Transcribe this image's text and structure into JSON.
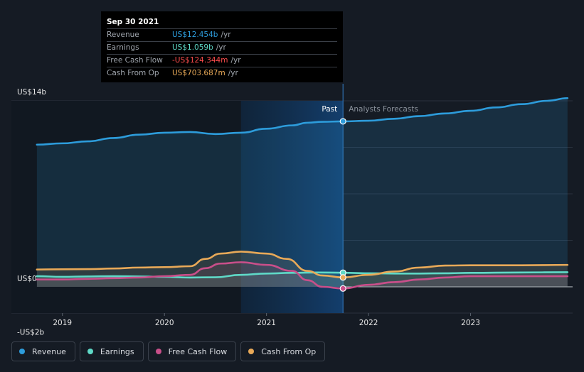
{
  "tooltip": {
    "date": "Sep 30 2021",
    "rows": [
      {
        "label": "Revenue",
        "value": "US$12.454b",
        "unit": "/yr",
        "color": "#2d9cdb"
      },
      {
        "label": "Earnings",
        "value": "US$1.059b",
        "unit": "/yr",
        "color": "#5fd9c7"
      },
      {
        "label": "Free Cash Flow",
        "value": "-US$124.344m",
        "unit": "/yr",
        "color": "#ff4d4d"
      },
      {
        "label": "Cash From Op",
        "value": "US$703.687m",
        "unit": "/yr",
        "color": "#e8a958"
      }
    ]
  },
  "chart_data": {
    "type": "area",
    "ylim": [
      -2,
      14
    ],
    "y_ticks": [
      {
        "value": 14,
        "label": "US$14b"
      },
      {
        "value": 0,
        "label": "US$0"
      },
      {
        "value": -2,
        "label": "-US$2b"
      }
    ],
    "x_ticks": [
      {
        "value": 2019,
        "label": "2019"
      },
      {
        "value": 2020,
        "label": "2020"
      },
      {
        "value": 2021,
        "label": "2021"
      },
      {
        "value": 2022,
        "label": "2022"
      },
      {
        "value": 2023,
        "label": "2023"
      }
    ],
    "xlim": [
      2018.5,
      2024.0
    ],
    "divider_x": 2021.75,
    "past_label": "Past",
    "forecast_label": "Analysts Forecasts",
    "highlight_range": [
      2020.75,
      2021.75
    ],
    "grid": true,
    "series": [
      {
        "name": "Revenue",
        "color": "#2d9cdb",
        "points": [
          [
            2018.75,
            10.7
          ],
          [
            2019.0,
            10.8
          ],
          [
            2019.25,
            10.95
          ],
          [
            2019.5,
            11.2
          ],
          [
            2019.75,
            11.45
          ],
          [
            2020.0,
            11.6
          ],
          [
            2020.25,
            11.65
          ],
          [
            2020.5,
            11.5
          ],
          [
            2020.75,
            11.6
          ],
          [
            2021.0,
            11.9
          ],
          [
            2021.25,
            12.15
          ],
          [
            2021.4,
            12.35
          ],
          [
            2021.55,
            12.42
          ],
          [
            2021.75,
            12.454
          ],
          [
            2022.0,
            12.5
          ],
          [
            2022.25,
            12.65
          ],
          [
            2022.5,
            12.85
          ],
          [
            2022.75,
            13.05
          ],
          [
            2023.0,
            13.25
          ],
          [
            2023.25,
            13.5
          ],
          [
            2023.5,
            13.75
          ],
          [
            2023.75,
            14.0
          ],
          [
            2023.95,
            14.2
          ]
        ]
      },
      {
        "name": "Earnings",
        "color": "#5fd9c7",
        "points": [
          [
            2018.75,
            0.8
          ],
          [
            2019.0,
            0.75
          ],
          [
            2019.25,
            0.78
          ],
          [
            2019.5,
            0.8
          ],
          [
            2019.75,
            0.78
          ],
          [
            2020.0,
            0.75
          ],
          [
            2020.25,
            0.7
          ],
          [
            2020.5,
            0.72
          ],
          [
            2020.75,
            0.9
          ],
          [
            2021.0,
            1.0
          ],
          [
            2021.25,
            1.05
          ],
          [
            2021.5,
            1.08
          ],
          [
            2021.75,
            1.059
          ],
          [
            2022.0,
            1.02
          ],
          [
            2022.25,
            1.0
          ],
          [
            2022.5,
            1.0
          ],
          [
            2022.75,
            1.02
          ],
          [
            2023.0,
            1.05
          ],
          [
            2023.5,
            1.08
          ],
          [
            2023.95,
            1.1
          ]
        ]
      },
      {
        "name": "Free Cash Flow",
        "color": "#c94f8a",
        "points": [
          [
            2018.75,
            0.55
          ],
          [
            2019.0,
            0.55
          ],
          [
            2019.25,
            0.6
          ],
          [
            2019.5,
            0.65
          ],
          [
            2019.75,
            0.7
          ],
          [
            2020.0,
            0.8
          ],
          [
            2020.25,
            0.9
          ],
          [
            2020.4,
            1.4
          ],
          [
            2020.55,
            1.75
          ],
          [
            2020.75,
            1.85
          ],
          [
            2021.0,
            1.65
          ],
          [
            2021.25,
            1.2
          ],
          [
            2021.4,
            0.5
          ],
          [
            2021.55,
            0.0
          ],
          [
            2021.75,
            -0.124
          ],
          [
            2022.0,
            0.15
          ],
          [
            2022.25,
            0.35
          ],
          [
            2022.5,
            0.55
          ],
          [
            2022.75,
            0.7
          ],
          [
            2023.0,
            0.8
          ],
          [
            2023.5,
            0.8
          ],
          [
            2023.95,
            0.8
          ]
        ]
      },
      {
        "name": "Cash From Op",
        "color": "#e8a958",
        "points": [
          [
            2018.75,
            1.3
          ],
          [
            2019.0,
            1.32
          ],
          [
            2019.25,
            1.33
          ],
          [
            2019.5,
            1.38
          ],
          [
            2019.75,
            1.45
          ],
          [
            2020.0,
            1.48
          ],
          [
            2020.25,
            1.55
          ],
          [
            2020.4,
            2.1
          ],
          [
            2020.55,
            2.5
          ],
          [
            2020.75,
            2.65
          ],
          [
            2021.0,
            2.5
          ],
          [
            2021.2,
            2.1
          ],
          [
            2021.4,
            1.2
          ],
          [
            2021.55,
            0.85
          ],
          [
            2021.75,
            0.704
          ],
          [
            2022.0,
            0.9
          ],
          [
            2022.25,
            1.15
          ],
          [
            2022.5,
            1.45
          ],
          [
            2022.75,
            1.6
          ],
          [
            2023.0,
            1.62
          ],
          [
            2023.5,
            1.62
          ],
          [
            2023.95,
            1.65
          ]
        ]
      }
    ]
  },
  "legend": [
    {
      "label": "Revenue",
      "color": "#2d9cdb"
    },
    {
      "label": "Earnings",
      "color": "#5fd9c7"
    },
    {
      "label": "Free Cash Flow",
      "color": "#c94f8a"
    },
    {
      "label": "Cash From Op",
      "color": "#e8a958"
    }
  ]
}
